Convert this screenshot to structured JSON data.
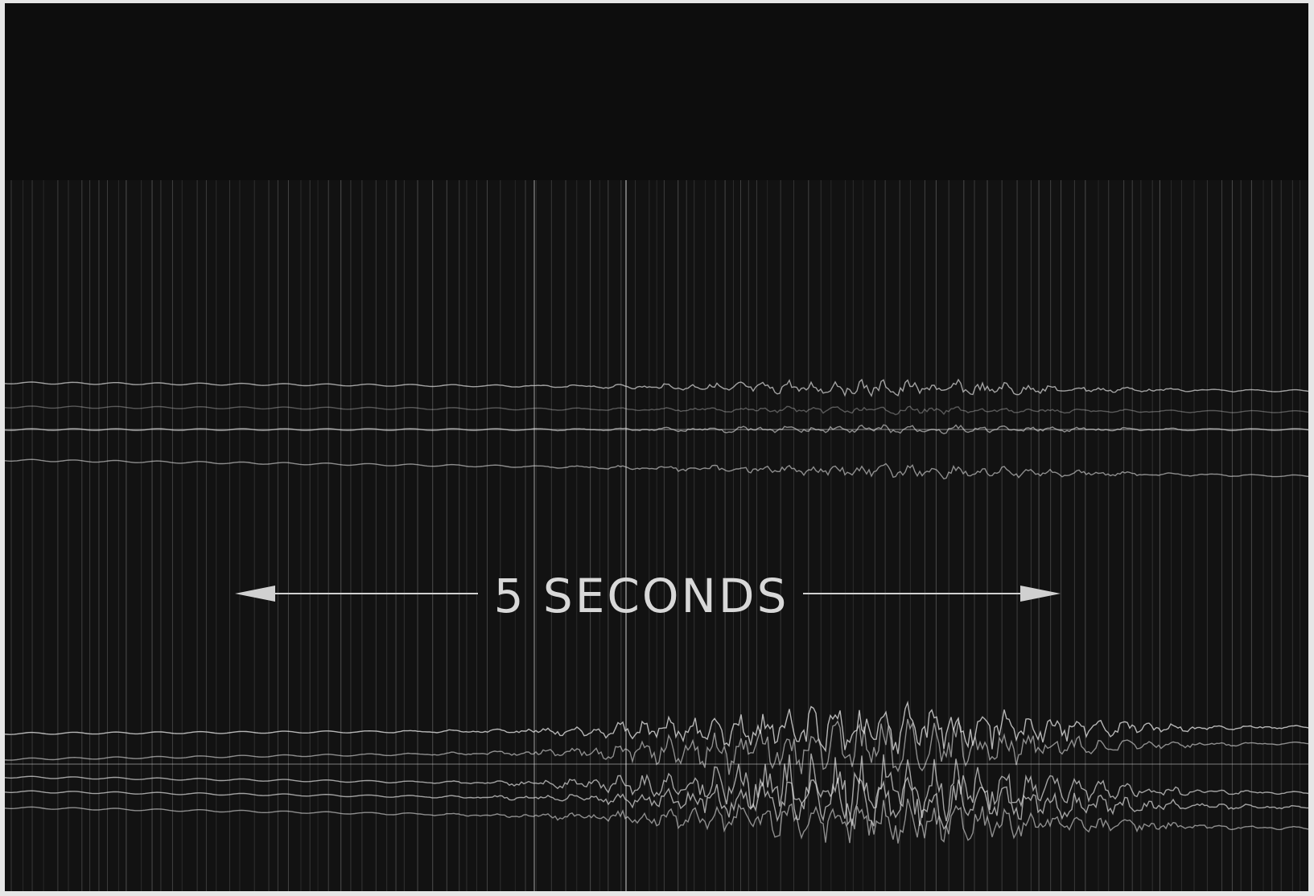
{
  "record": {
    "scale_label": "5 SECONDS"
  }
}
